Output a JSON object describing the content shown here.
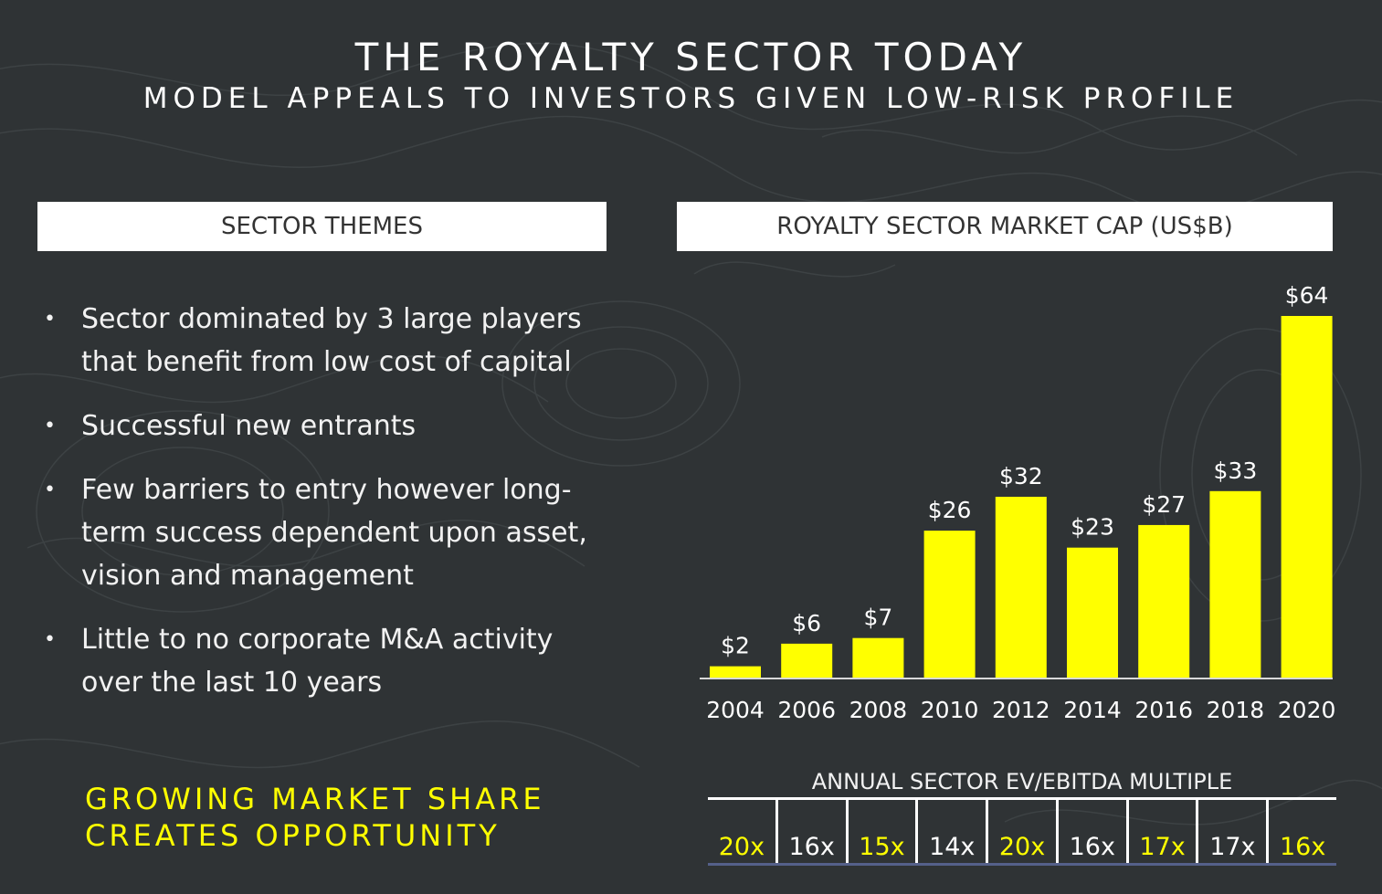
{
  "title": "THE ROYALTY SECTOR TODAY",
  "subtitle": "MODEL APPEALS TO INVESTORS GIVEN LOW-RISK PROFILE",
  "left_panel": {
    "header": "SECTOR THEMES",
    "bullets": [
      {
        "line1": "Sector dominated by 3 large players",
        "line2": "that benefit from  low cost of capital",
        "line3": ""
      },
      {
        "line1": "Successful new entrants",
        "line2": "",
        "line3": ""
      },
      {
        "line1": "Few barriers to entry however long-",
        "line2": "term success dependent upon asset,",
        "line3": "vision and management"
      },
      {
        "line1": "Little to no corporate M&A activity",
        "line2": "over the last 10 years",
        "line3": ""
      }
    ],
    "bullet_symbol": "•",
    "callout_line1": "GROWING MARKET SHARE",
    "callout_line2": "CREATES OPPORTUNITY"
  },
  "right_panel": {
    "header": "ROYALTY SECTOR MARKET CAP (US$B)",
    "multiple_title": "ANNUAL SECTOR EV/EBITDA MULTIPLE",
    "multiples": [
      "20x",
      "16x",
      "15x",
      "14x",
      "20x",
      "16x",
      "17x",
      "17x",
      "16x"
    ],
    "multiple_colors": [
      "yellow",
      "white",
      "yellow",
      "white",
      "yellow",
      "white",
      "yellow",
      "white",
      "yellow"
    ]
  },
  "colors": {
    "background": "#2f3335",
    "bar": "#ffff00",
    "accent_text": "#ffff00",
    "header_bg": "#ffffff"
  },
  "chart_data": {
    "type": "bar",
    "title": "ROYALTY SECTOR MARKET CAP (US$B)",
    "categories": [
      "2004",
      "2006",
      "2008",
      "2010",
      "2012",
      "2014",
      "2016",
      "2018",
      "2020"
    ],
    "values": [
      2,
      6,
      7,
      26,
      32,
      23,
      27,
      33,
      64
    ],
    "data_labels": [
      "$2",
      "$6",
      "$7",
      "$26",
      "$32",
      "$23",
      "$27",
      "$33",
      "$64"
    ],
    "ylim": [
      0,
      64
    ],
    "xlabel": "",
    "ylabel": "",
    "grid": false,
    "legend": "none"
  }
}
